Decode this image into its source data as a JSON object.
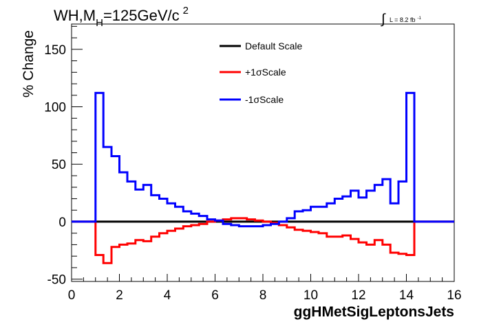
{
  "chart_data": {
    "type": "line",
    "title_main": "WH,M",
    "title_sub": "H",
    "title_rest": "=125GeV/c",
    "title_sup": "2",
    "lumi_label": "L = 8.2 fb",
    "lumi_sup": "-1",
    "lumi_integral": "∫",
    "ylabel": "% Change",
    "xlabel": "ggHMetSigLeptonsJets",
    "xlim": [
      0,
      16
    ],
    "ylim": [
      -52,
      172
    ],
    "xticks": [
      0,
      2,
      4,
      6,
      8,
      10,
      12,
      14,
      16
    ],
    "yticks": [
      -50,
      0,
      50,
      100,
      150
    ],
    "grid": false,
    "legend_position": "top-center",
    "bin_edges": [
      0,
      1,
      1.33,
      1.67,
      2,
      2.33,
      2.67,
      3,
      3.33,
      3.67,
      4,
      4.33,
      4.67,
      5,
      5.33,
      5.67,
      6,
      6.33,
      6.67,
      7,
      7.33,
      7.67,
      8,
      8.33,
      8.67,
      9,
      9.33,
      9.67,
      10,
      10.33,
      10.67,
      11,
      11.33,
      11.67,
      12,
      12.33,
      12.67,
      13,
      13.33,
      13.67,
      14,
      14.33,
      14.67,
      16
    ],
    "series": [
      {
        "name": "Default Scale",
        "color": "#000000",
        "values": [
          0,
          0,
          0,
          0,
          0,
          0,
          0,
          0,
          0,
          0,
          0,
          0,
          0,
          0,
          0,
          0,
          0,
          0,
          0,
          0,
          0,
          0,
          0,
          0,
          0,
          0,
          0,
          0,
          0,
          0,
          0,
          0,
          0,
          0,
          0,
          0,
          0,
          0,
          0,
          0,
          0,
          0,
          0
        ]
      },
      {
        "name": "+1σScale",
        "color": "#ff0000",
        "values": [
          0,
          -29,
          -36,
          -22,
          -20,
          -19,
          -16,
          -17,
          -13,
          -10,
          -8,
          -6,
          -4,
          -3,
          -2,
          0,
          1,
          2,
          3,
          3,
          2,
          1,
          0,
          -1,
          -3,
          -5,
          -7,
          -8,
          -9,
          -10,
          -13,
          -13,
          -12,
          -15,
          -18,
          -20,
          -16,
          -20,
          -27,
          -28,
          -29,
          0,
          0
        ]
      },
      {
        "name": "-1σScale",
        "color": "#0000ff",
        "values": [
          0,
          112,
          65,
          57,
          43,
          35,
          28,
          32,
          23,
          20,
          16,
          13,
          9,
          7,
          5,
          2,
          1,
          -2,
          -3,
          -4,
          -4,
          -4,
          -3,
          -2,
          0,
          3,
          9,
          10,
          13,
          13,
          16,
          20,
          22,
          27,
          21,
          27,
          32,
          37,
          16,
          35,
          112,
          0,
          0
        ]
      }
    ]
  }
}
